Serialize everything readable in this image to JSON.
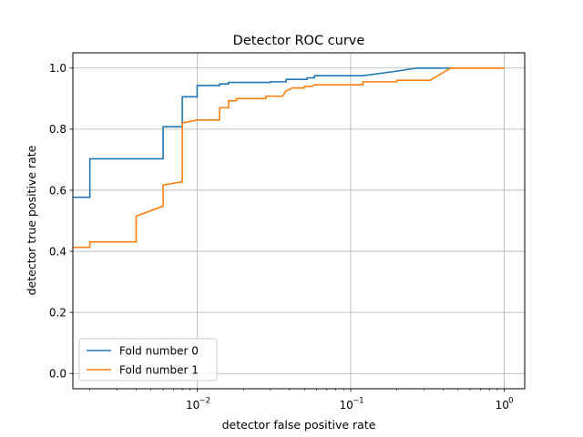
{
  "chart_data": {
    "type": "line",
    "title": "Detector ROC curve",
    "xlabel": "detector false positive rate",
    "ylabel": "detector true positive rate",
    "xscale": "log",
    "xlim": [
      0.00155,
      1.36
    ],
    "ylim": [
      -0.05,
      1.05
    ],
    "xticks": [
      {
        "value": 0.01,
        "base": "10",
        "exp": "−2"
      },
      {
        "value": 0.1,
        "base": "10",
        "exp": "−1"
      },
      {
        "value": 1,
        "base": "10",
        "exp": "0"
      }
    ],
    "yticks": [
      "0.0",
      "0.2",
      "0.4",
      "0.6",
      "0.8",
      "1.0"
    ],
    "grid": true,
    "legend_position": "lower-left",
    "series": [
      {
        "name": "Fold number 0",
        "color": "#1f77b4",
        "step": true,
        "points": [
          [
            0.00155,
            0.577
          ],
          [
            0.002,
            0.577
          ],
          [
            0.002,
            0.703
          ],
          [
            0.006,
            0.703
          ],
          [
            0.006,
            0.808
          ],
          [
            0.008,
            0.808
          ],
          [
            0.008,
            0.906
          ],
          [
            0.01,
            0.906
          ],
          [
            0.01,
            0.943
          ],
          [
            0.014,
            0.943
          ],
          [
            0.014,
            0.948
          ],
          [
            0.016,
            0.948
          ],
          [
            0.016,
            0.953
          ],
          [
            0.03,
            0.953
          ],
          [
            0.03,
            0.955
          ],
          [
            0.038,
            0.955
          ],
          [
            0.038,
            0.963
          ],
          [
            0.052,
            0.963
          ],
          [
            0.052,
            0.968
          ],
          [
            0.058,
            0.968
          ],
          [
            0.058,
            0.975
          ],
          [
            0.12,
            0.975
          ],
          [
            0.2,
            0.99
          ],
          [
            0.27,
            1.0
          ],
          [
            1.0,
            1.0
          ]
        ]
      },
      {
        "name": "Fold number 1",
        "color": "#ff7f0e",
        "step": true,
        "points": [
          [
            0.00155,
            0.413
          ],
          [
            0.002,
            0.413
          ],
          [
            0.002,
            0.431
          ],
          [
            0.004,
            0.431
          ],
          [
            0.004,
            0.515
          ],
          [
            0.006,
            0.548
          ],
          [
            0.006,
            0.617
          ],
          [
            0.0078,
            0.627
          ],
          [
            0.008,
            0.627
          ],
          [
            0.008,
            0.82
          ],
          [
            0.01,
            0.83
          ],
          [
            0.014,
            0.83
          ],
          [
            0.014,
            0.87
          ],
          [
            0.016,
            0.87
          ],
          [
            0.016,
            0.893
          ],
          [
            0.018,
            0.893
          ],
          [
            0.018,
            0.9
          ],
          [
            0.028,
            0.9
          ],
          [
            0.028,
            0.908
          ],
          [
            0.036,
            0.908
          ],
          [
            0.038,
            0.925
          ],
          [
            0.042,
            0.935
          ],
          [
            0.05,
            0.935
          ],
          [
            0.05,
            0.94
          ],
          [
            0.056,
            0.94
          ],
          [
            0.058,
            0.945
          ],
          [
            0.12,
            0.945
          ],
          [
            0.12,
            0.955
          ],
          [
            0.2,
            0.955
          ],
          [
            0.2,
            0.96
          ],
          [
            0.33,
            0.96
          ],
          [
            0.43,
            0.995
          ],
          [
            0.45,
            1.0
          ],
          [
            1.0,
            1.0
          ]
        ]
      }
    ]
  }
}
